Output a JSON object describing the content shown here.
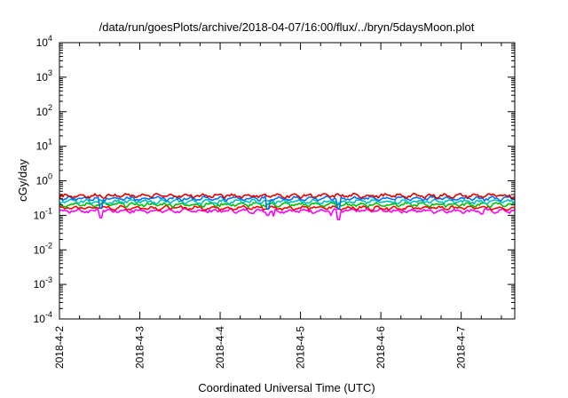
{
  "chart_data": {
    "type": "line",
    "title": "/data/run/goesPlots/archive/2018-04-07/16:00/flux/../bryn/5daysMoon.plot",
    "xlabel": "Coordinated Universal Time (UTC)",
    "ylabel": "cGy/day",
    "yscale": "log",
    "ylim": [
      0.0001,
      10000
    ],
    "xlim": [
      "2018-04-02T00:00",
      "2018-04-07T16:00"
    ],
    "x_ticks": [
      "2018-4-2",
      "2018-4-3",
      "2018-4-4",
      "2018-4-5",
      "2018-4-6",
      "2018-4-7"
    ],
    "y_ticks": [
      {
        "base": "10",
        "exp": "4",
        "value": 10000
      },
      {
        "base": "10",
        "exp": "3",
        "value": 1000
      },
      {
        "base": "10",
        "exp": "2",
        "value": 100
      },
      {
        "base": "10",
        "exp": "1",
        "value": 10
      },
      {
        "base": "10",
        "exp": "0",
        "value": 1
      },
      {
        "base": "10",
        "exp": "-1",
        "value": 0.1
      },
      {
        "base": "10",
        "exp": "-2",
        "value": 0.01
      },
      {
        "base": "10",
        "exp": "-3",
        "value": 0.001
      },
      {
        "base": "10",
        "exp": "-4",
        "value": 0.0001
      }
    ],
    "grid": false,
    "series": [
      {
        "color": "#ff00ff",
        "base": 0.135,
        "dips": [
          [
            "2018-04-02T12:20",
            0.085
          ],
          [
            "2018-04-04T14:10",
            0.1
          ],
          [
            "2018-04-04T16:00",
            0.095
          ],
          [
            "2018-04-05T09:00",
            0.1
          ],
          [
            "2018-04-05T11:20",
            0.075
          ],
          [
            "2018-04-07T06:10",
            0.11
          ]
        ]
      },
      {
        "color": "#ff0000",
        "base": 0.165,
        "dips": []
      },
      {
        "color": "#00c000",
        "base": 0.205,
        "dips": []
      },
      {
        "color": "#00c0c0",
        "base": 0.25,
        "dips": []
      },
      {
        "color": "#0070ff",
        "base": 0.31,
        "dips": [
          [
            "2018-04-02T12:20",
            0.16
          ],
          [
            "2018-04-04T14:10",
            0.15
          ],
          [
            "2018-04-05T11:20",
            0.15
          ]
        ]
      },
      {
        "color": "#e00000",
        "base": 0.37,
        "dips": []
      }
    ]
  }
}
